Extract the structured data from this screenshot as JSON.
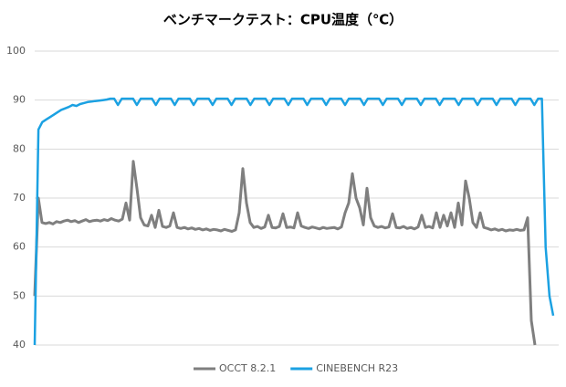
{
  "chart_data": {
    "type": "line",
    "title": "ベンチマークテスト：CPU温度（℃）",
    "ylim": [
      40,
      100
    ],
    "yticks": [
      40,
      50,
      60,
      70,
      80,
      90,
      100
    ],
    "grid": true,
    "legend": "bottom",
    "series": [
      {
        "name": "OCCT 8.2.1",
        "color": "#7f7f7f",
        "values": [
          50,
          70,
          65,
          64.8,
          65,
          64.7,
          65.2,
          65,
          65.3,
          65.5,
          65.2,
          65.4,
          65,
          65.3,
          65.6,
          65.2,
          65.4,
          65.5,
          65.3,
          65.6,
          65.4,
          65.8,
          65.5,
          65.3,
          65.7,
          69,
          65.5,
          77.5,
          72,
          66,
          64.5,
          64.3,
          66.5,
          64,
          67.5,
          64.2,
          64,
          64.3,
          67,
          64,
          63.8,
          64,
          63.7,
          63.9,
          63.6,
          63.8,
          63.5,
          63.7,
          63.4,
          63.6,
          63.5,
          63.3,
          63.6,
          63.4,
          63.2,
          63.5,
          67,
          76,
          69,
          65,
          64,
          64.2,
          63.8,
          64.1,
          66.5,
          64,
          63.9,
          64.2,
          66.8,
          64,
          64.1,
          63.9,
          67,
          64.3,
          64,
          63.8,
          64.1,
          63.9,
          63.7,
          64,
          63.8,
          63.9,
          64,
          63.7,
          64.1,
          67,
          69,
          75,
          70,
          68,
          64.5,
          72,
          66,
          64.3,
          64,
          64.2,
          63.9,
          64.1,
          66.8,
          64,
          63.9,
          64.2,
          63.8,
          64,
          63.7,
          64.1,
          66.5,
          64,
          64.2,
          63.9,
          67,
          64,
          66.5,
          64.3,
          67,
          64,
          69,
          64.5,
          73.5,
          70,
          65,
          64,
          67,
          64,
          63.8,
          63.5,
          63.7,
          63.4,
          63.6,
          63.3,
          63.5,
          63.4,
          63.6,
          63.4,
          63.5,
          66,
          45,
          40,
          null,
          null,
          null,
          null,
          null
        ]
      },
      {
        "name": "CINEBENCH R23",
        "color": "#1ba1e2",
        "values": [
          40,
          84,
          85.5,
          86,
          86.5,
          87,
          87.5,
          88,
          88.3,
          88.6,
          89,
          88.8,
          89.2,
          89.4,
          89.6,
          89.7,
          89.8,
          89.9,
          90,
          90.1,
          90.3,
          90.3,
          89,
          90.3,
          90.3,
          90.3,
          90.3,
          89,
          90.3,
          90.3,
          90.3,
          90.3,
          89,
          90.3,
          90.3,
          90.3,
          90.3,
          89,
          90.3,
          90.3,
          90.3,
          90.3,
          89,
          90.3,
          90.3,
          90.3,
          90.3,
          89,
          90.3,
          90.3,
          90.3,
          90.3,
          89,
          90.3,
          90.3,
          90.3,
          90.3,
          89,
          90.3,
          90.3,
          90.3,
          90.3,
          89,
          90.3,
          90.3,
          90.3,
          90.3,
          89,
          90.3,
          90.3,
          90.3,
          90.3,
          89,
          90.3,
          90.3,
          90.3,
          90.3,
          89,
          90.3,
          90.3,
          90.3,
          90.3,
          89,
          90.3,
          90.3,
          90.3,
          90.3,
          89,
          90.3,
          90.3,
          90.3,
          90.3,
          89,
          90.3,
          90.3,
          90.3,
          90.3,
          89,
          90.3,
          90.3,
          90.3,
          90.3,
          89,
          90.3,
          90.3,
          90.3,
          90.3,
          89,
          90.3,
          90.3,
          90.3,
          90.3,
          89,
          90.3,
          90.3,
          90.3,
          90.3,
          89,
          90.3,
          90.3,
          90.3,
          90.3,
          89,
          90.3,
          90.3,
          90.3,
          90.3,
          89,
          90.3,
          90.3,
          90.3,
          90.3,
          89,
          90.3,
          90.3,
          60,
          50,
          46
        ]
      }
    ]
  }
}
